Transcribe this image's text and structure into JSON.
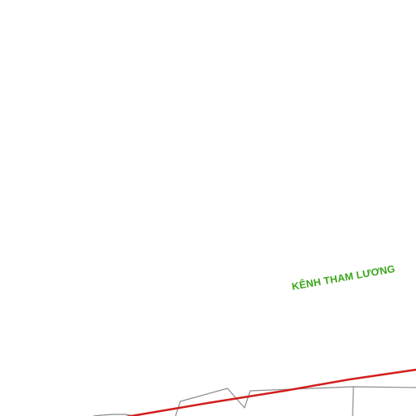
{
  "map": {
    "labels": {
      "canal_name": "KÊNH THAM LƯƠNG"
    },
    "colors": {
      "background": "#ffffff",
      "canal_label": "#3aa61a",
      "main_road": "#d21f1f",
      "boundary": "#8a8a8a"
    },
    "features": [
      {
        "kind": "waterway-label",
        "name_key": "canal_name"
      },
      {
        "kind": "road",
        "class": "main"
      },
      {
        "kind": "boundary",
        "class": "district-outline"
      }
    ]
  }
}
